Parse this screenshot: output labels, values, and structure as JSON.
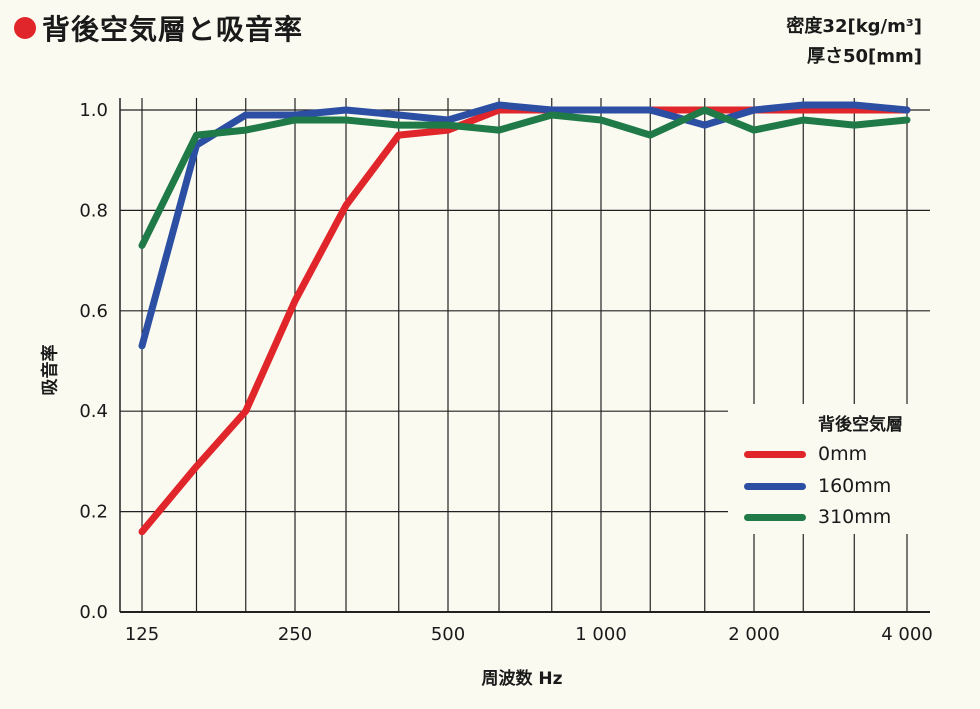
{
  "header": {
    "title": "背後空気層と吸音率",
    "spec_density": "密度32[kg/m³]",
    "spec_thickness": "厚さ50[mm]"
  },
  "colors": {
    "bullet": "#e0262a",
    "series_0mm": "#e0262a",
    "series_160mm": "#2c4fa3",
    "series_310mm": "#1f7a48",
    "grid": "#222222"
  },
  "chart_data": {
    "type": "line",
    "title": "背後空気層と吸音率",
    "xlabel": "周波数 Hz",
    "ylabel": "吸音率",
    "x_scale": "log",
    "x": [
      125,
      160,
      200,
      250,
      315,
      400,
      500,
      630,
      800,
      1000,
      1250,
      1600,
      2000,
      2500,
      3150,
      4000
    ],
    "x_tick_values": [
      125,
      250,
      500,
      1000,
      2000,
      4000
    ],
    "x_tick_labels": [
      "125",
      "250",
      "500",
      "1 000",
      "2 000",
      "4 000"
    ],
    "ylim": [
      0.0,
      1.0
    ],
    "y_tick_labels": [
      "0.0",
      "0.2",
      "0.4",
      "0.6",
      "0.8",
      "1.0"
    ],
    "grid": true,
    "legend_title": "背後空気層",
    "legend_position": "bottom-right",
    "series": [
      {
        "name": "0mm",
        "color": "#e0262a",
        "values": [
          0.16,
          0.29,
          0.4,
          0.62,
          0.81,
          0.95,
          0.96,
          1.0,
          1.0,
          1.0,
          1.0,
          1.0,
          1.0,
          1.0,
          1.0,
          1.0
        ]
      },
      {
        "name": "160mm",
        "color": "#2c4fa3",
        "values": [
          0.53,
          0.93,
          0.99,
          0.99,
          1.0,
          0.99,
          0.98,
          1.01,
          1.0,
          1.0,
          1.0,
          0.97,
          1.0,
          1.01,
          1.01,
          1.0
        ]
      },
      {
        "name": "310mm",
        "color": "#1f7a48",
        "values": [
          0.73,
          0.95,
          0.96,
          0.98,
          0.98,
          0.97,
          0.97,
          0.96,
          0.99,
          0.98,
          0.95,
          1.0,
          0.96,
          0.98,
          0.97,
          0.98
        ]
      }
    ]
  }
}
